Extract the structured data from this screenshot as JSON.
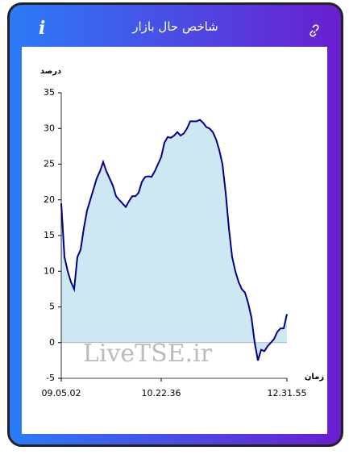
{
  "header": {
    "title": "شاخص حال بازار"
  },
  "chart_data": {
    "type": "area",
    "y_label": "درصد",
    "x_label": "زمان",
    "annotation": "LiveTSE.ir",
    "categories": [
      "09.05.02",
      null,
      null,
      null,
      null,
      null,
      null,
      null,
      null,
      null,
      null,
      null,
      null,
      null,
      null,
      null,
      null,
      null,
      null,
      null,
      null,
      null,
      null,
      null,
      null,
      null,
      null,
      null,
      null,
      null,
      null,
      "10.22.36",
      null,
      null,
      null,
      null,
      null,
      null,
      null,
      null,
      null,
      null,
      null,
      null,
      null,
      null,
      null,
      null,
      null,
      null,
      null,
      null,
      null,
      null,
      null,
      null,
      null,
      null,
      null,
      null,
      null,
      null,
      null,
      null,
      null,
      null,
      null,
      null,
      null,
      null,
      "12.31.55"
    ],
    "values": [
      19.5,
      12,
      10,
      8.5,
      7.5,
      12,
      13,
      16,
      18.5,
      20,
      21.5,
      23,
      24,
      25.3,
      24,
      23,
      22,
      20.5,
      20,
      19.5,
      19,
      19.8,
      20.5,
      20.5,
      21,
      22.5,
      23.2,
      23.3,
      23.2,
      24,
      25,
      26,
      28,
      28.8,
      28.7,
      29,
      29.5,
      29,
      29.3,
      30,
      31,
      31,
      31,
      31.2,
      30.8,
      30.2,
      30,
      29.5,
      28.5,
      27,
      25,
      21,
      16,
      12,
      10,
      8.5,
      7.5,
      7,
      5.5,
      3.5,
      0,
      -2.5,
      -1,
      -1.2,
      -0.5,
      0,
      0.5,
      1.5,
      2,
      2,
      4
    ],
    "color": "#00008b",
    "fill_color": "#cde8f2",
    "ylim": [
      -5,
      35
    ],
    "yticks": [
      -5,
      0,
      5,
      10,
      15,
      20,
      25,
      30,
      35
    ],
    "grid": false
  }
}
